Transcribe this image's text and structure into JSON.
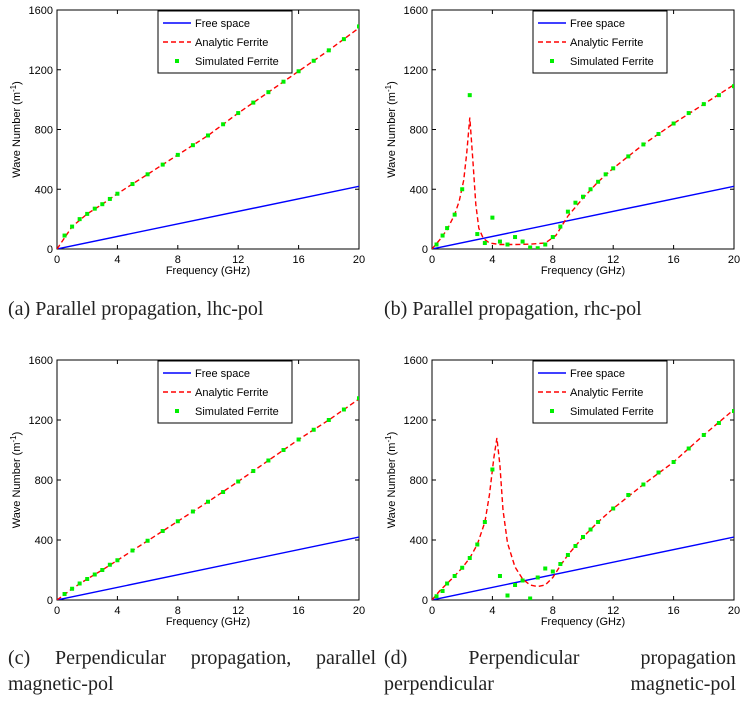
{
  "legend_labels": [
    "Free space",
    "Analytic Ferrite",
    "Simulated Ferrite"
  ],
  "colors": {
    "free_space": "#0000ff",
    "analytic": "#ff0000",
    "simulated": "#00ee00",
    "axes": "#000000"
  },
  "chart_data": [
    {
      "type": "line",
      "panel": "a",
      "xlabel": "Frequency (GHz)",
      "ylabel": "Wave Number (m-1)",
      "xlim": [
        0,
        20
      ],
      "ylim": [
        0,
        1600
      ],
      "xticks": [
        "0",
        "4",
        "8",
        "12",
        "16",
        "20"
      ],
      "yticks": [
        "0",
        "400",
        "800",
        "1200",
        "1600"
      ],
      "legend_position": "top-center",
      "caption": "(a) Parallel propagation, lhc-pol",
      "series": [
        {
          "name": "Free space",
          "style": "solid",
          "x": [
            0,
            20
          ],
          "y": [
            0,
            420
          ]
        },
        {
          "name": "Analytic Ferrite",
          "style": "dashed",
          "x": [
            0,
            1,
            2,
            3,
            4,
            6,
            8,
            10,
            12,
            14,
            16,
            18,
            20
          ],
          "y": [
            0,
            150,
            235,
            300,
            370,
            500,
            630,
            760,
            910,
            1050,
            1190,
            1330,
            1480
          ]
        },
        {
          "name": "Simulated Ferrite",
          "style": "markers",
          "x": [
            0.5,
            1,
            1.5,
            2,
            2.5,
            3,
            3.5,
            4,
            5,
            6,
            7,
            8,
            9,
            10,
            11,
            12,
            13,
            14,
            15,
            16,
            17,
            18,
            19,
            20
          ],
          "y": [
            90,
            150,
            200,
            235,
            270,
            300,
            335,
            370,
            435,
            500,
            565,
            630,
            695,
            760,
            835,
            910,
            980,
            1050,
            1120,
            1190,
            1260,
            1330,
            1405,
            1490
          ]
        }
      ]
    },
    {
      "type": "line",
      "panel": "b",
      "xlabel": "Frequency (GHz)",
      "ylabel": "Wave Number (m-1)",
      "xlim": [
        0,
        20
      ],
      "ylim": [
        0,
        1600
      ],
      "xticks": [
        "0",
        "4",
        "8",
        "12",
        "16",
        "20"
      ],
      "yticks": [
        "0",
        "400",
        "800",
        "1200",
        "1600"
      ],
      "legend_position": "top-center",
      "caption": "(b) Parallel propagation, rhc-pol",
      "series": [
        {
          "name": "Free space",
          "style": "solid",
          "x": [
            0,
            20
          ],
          "y": [
            0,
            420
          ]
        },
        {
          "name": "Analytic Ferrite",
          "style": "dashed",
          "x": [
            0,
            0.5,
            1,
            1.5,
            1.8,
            2.1,
            2.3,
            2.5,
            2.7,
            2.9,
            3.1,
            3.4,
            3.8,
            4.5,
            5.5,
            6.5,
            7.5,
            8.2,
            9,
            10,
            11,
            12,
            14,
            16,
            18,
            20
          ],
          "y": [
            0,
            60,
            130,
            230,
            320,
            460,
            640,
            880,
            600,
            300,
            140,
            70,
            40,
            30,
            30,
            32,
            40,
            90,
            220,
            340,
            450,
            540,
            700,
            840,
            970,
            1100
          ]
        },
        {
          "name": "Simulated Ferrite",
          "style": "markers",
          "x": [
            0.3,
            0.7,
            1,
            1.5,
            2,
            2.5,
            3,
            3.5,
            4,
            4.5,
            5,
            5.5,
            6,
            6.5,
            7,
            7.5,
            8,
            8.5,
            9,
            9.5,
            10,
            10.5,
            11,
            11.5,
            12,
            13,
            14,
            15,
            16,
            17,
            18,
            19,
            20
          ],
          "y": [
            30,
            90,
            140,
            230,
            400,
            1030,
            100,
            40,
            210,
            50,
            30,
            80,
            50,
            10,
            5,
            30,
            80,
            150,
            250,
            310,
            350,
            400,
            450,
            500,
            540,
            620,
            700,
            770,
            840,
            910,
            970,
            1030,
            1090
          ]
        }
      ]
    },
    {
      "type": "line",
      "panel": "c",
      "xlabel": "Frequency (GHz)",
      "ylabel": "Wave Number (m-1)",
      "xlim": [
        0,
        20
      ],
      "ylim": [
        0,
        1600
      ],
      "xticks": [
        "0",
        "4",
        "8",
        "12",
        "16",
        "20"
      ],
      "yticks": [
        "0",
        "400",
        "800",
        "1200",
        "1600"
      ],
      "legend_position": "top-center",
      "caption": "(c) Perpendicular propagation, parallel magnetic-pol",
      "series": [
        {
          "name": "Free space",
          "style": "solid",
          "x": [
            0,
            20
          ],
          "y": [
            0,
            420
          ]
        },
        {
          "name": "Analytic Ferrite",
          "style": "dashed",
          "x": [
            0,
            1,
            2,
            3,
            4,
            6,
            8,
            10,
            12,
            14,
            16,
            18,
            20
          ],
          "y": [
            0,
            75,
            140,
            200,
            265,
            395,
            525,
            655,
            790,
            930,
            1070,
            1200,
            1340
          ]
        },
        {
          "name": "Simulated Ferrite",
          "style": "markers",
          "x": [
            0.5,
            1,
            1.5,
            2,
            2.5,
            3,
            3.5,
            4,
            5,
            6,
            7,
            8,
            9,
            10,
            11,
            12,
            13,
            14,
            15,
            16,
            17,
            18,
            19,
            20
          ],
          "y": [
            40,
            75,
            110,
            140,
            170,
            200,
            235,
            265,
            330,
            395,
            460,
            525,
            590,
            655,
            720,
            790,
            860,
            930,
            1000,
            1070,
            1135,
            1200,
            1270,
            1345
          ]
        }
      ]
    },
    {
      "type": "line",
      "panel": "d",
      "xlabel": "Frequency (GHz)",
      "ylabel": "Wave Number (m-1)",
      "xlim": [
        0,
        20
      ],
      "ylim": [
        0,
        1600
      ],
      "xticks": [
        "0",
        "4",
        "8",
        "12",
        "16",
        "20"
      ],
      "yticks": [
        "0",
        "400",
        "800",
        "1200",
        "1600"
      ],
      "legend_position": "top-center",
      "caption": "(d) Perpendicular propagation perpendicular magnetic-pol",
      "series": [
        {
          "name": "Free space",
          "style": "solid",
          "x": [
            0,
            20
          ],
          "y": [
            0,
            420
          ]
        },
        {
          "name": "Analytic Ferrite",
          "style": "dashed",
          "x": [
            0,
            0.5,
            1,
            1.5,
            2,
            2.5,
            3,
            3.5,
            3.8,
            4.1,
            4.3,
            4.5,
            4.7,
            5,
            5.5,
            6,
            6.5,
            7,
            7.5,
            8,
            8.5,
            9,
            10,
            11,
            12,
            14,
            16,
            18,
            20
          ],
          "y": [
            0,
            60,
            110,
            160,
            215,
            280,
            370,
            520,
            700,
            950,
            1080,
            900,
            600,
            380,
            220,
            140,
            100,
            90,
            100,
            150,
            230,
            300,
            420,
            520,
            610,
            770,
            920,
            1100,
            1270
          ]
        },
        {
          "name": "Simulated Ferrite",
          "style": "markers",
          "x": [
            0.3,
            0.7,
            1,
            1.5,
            2,
            2.5,
            3,
            3.5,
            4,
            4.5,
            5,
            5.5,
            6,
            6.5,
            7,
            7.5,
            8,
            8.5,
            9,
            9.5,
            10,
            10.5,
            11,
            12,
            13,
            14,
            15,
            16,
            17,
            18,
            19,
            20
          ],
          "y": [
            25,
            60,
            110,
            160,
            215,
            280,
            370,
            520,
            870,
            160,
            30,
            100,
            130,
            10,
            150,
            210,
            190,
            240,
            300,
            360,
            420,
            470,
            520,
            610,
            700,
            770,
            850,
            920,
            1010,
            1100,
            1180,
            1260
          ]
        }
      ]
    }
  ]
}
